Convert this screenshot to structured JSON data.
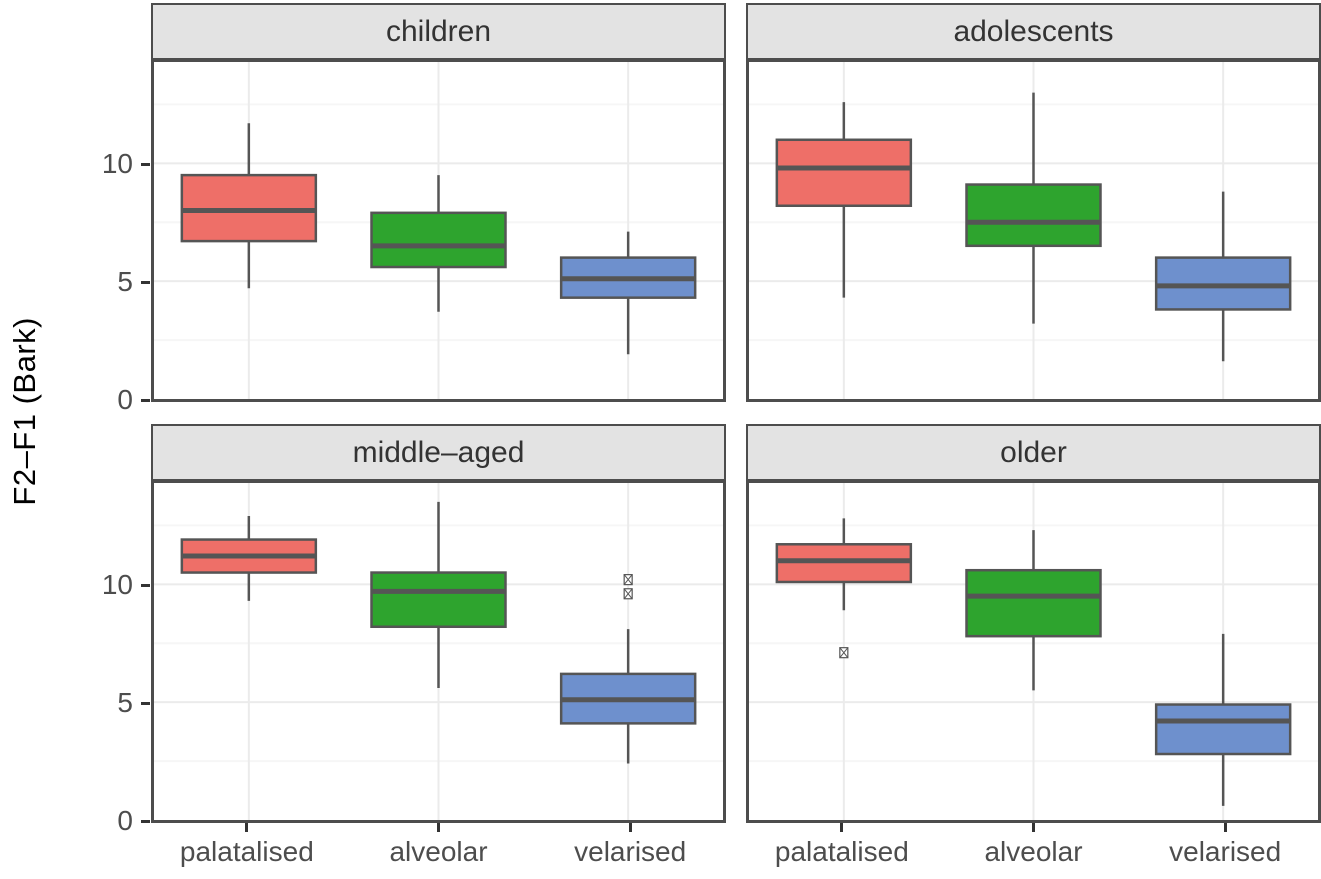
{
  "page": {
    "background": "#ffffff"
  },
  "y_axis": {
    "title": "F2–F1 (Bark)",
    "tick_labels": [
      "0",
      "5",
      "10"
    ]
  },
  "style": {
    "fill_palatalised": "#EE6F68",
    "fill_alveolar": "#2EA42E",
    "fill_velarised": "#6E90CD",
    "box_stroke": "#555555",
    "panel_border": "#4D4D4D",
    "strip_bg": "#E3E3E3",
    "strip_text": "#333333",
    "grid_major": "#EBEBEB",
    "grid_minor": "#F6F6F6",
    "axis_text": "#4D4D4D",
    "tick_mark": "#333333",
    "outlier_stroke": "#555555"
  },
  "chart_data": {
    "type": "boxplot",
    "title": "",
    "xlabel": "",
    "ylabel": "F2–F1 (Bark)",
    "grid": true,
    "legend": "none",
    "y_domain": [
      0,
      14.3
    ],
    "y_ticks": [
      0,
      5,
      10
    ],
    "y_minor_ticks": [
      2.5,
      7.5,
      12.5
    ],
    "categories": [
      "palatalised",
      "alveolar",
      "velarised"
    ],
    "facets": [
      {
        "label": "children",
        "boxes": [
          {
            "category": "palatalised",
            "whisker_low": 4.7,
            "q1": 6.7,
            "median": 8.0,
            "q3": 9.5,
            "whisker_high": 11.7,
            "outliers": []
          },
          {
            "category": "alveolar",
            "whisker_low": 3.7,
            "q1": 5.6,
            "median": 6.5,
            "q3": 7.9,
            "whisker_high": 9.5,
            "outliers": []
          },
          {
            "category": "velarised",
            "whisker_low": 1.9,
            "q1": 4.3,
            "median": 5.1,
            "q3": 6.0,
            "whisker_high": 7.1,
            "outliers": []
          }
        ]
      },
      {
        "label": "adolescents",
        "boxes": [
          {
            "category": "palatalised",
            "whisker_low": 4.3,
            "q1": 8.2,
            "median": 9.8,
            "q3": 11.0,
            "whisker_high": 12.6,
            "outliers": []
          },
          {
            "category": "alveolar",
            "whisker_low": 3.2,
            "q1": 6.5,
            "median": 7.5,
            "q3": 9.1,
            "whisker_high": 13.0,
            "outliers": []
          },
          {
            "category": "velarised",
            "whisker_low": 1.6,
            "q1": 3.8,
            "median": 4.8,
            "q3": 6.0,
            "whisker_high": 8.8,
            "outliers": []
          }
        ]
      },
      {
        "label": "middle–aged",
        "boxes": [
          {
            "category": "palatalised",
            "whisker_low": 9.3,
            "q1": 10.5,
            "median": 11.2,
            "q3": 11.9,
            "whisker_high": 12.9,
            "outliers": []
          },
          {
            "category": "alveolar",
            "whisker_low": 5.6,
            "q1": 8.2,
            "median": 9.7,
            "q3": 10.5,
            "whisker_high": 13.5,
            "outliers": []
          },
          {
            "category": "velarised",
            "whisker_low": 2.4,
            "q1": 4.1,
            "median": 5.1,
            "q3": 6.2,
            "whisker_high": 8.1,
            "outliers": [
              10.2,
              9.6
            ]
          }
        ]
      },
      {
        "label": "older",
        "boxes": [
          {
            "category": "palatalised",
            "whisker_low": 8.9,
            "q1": 10.1,
            "median": 11.0,
            "q3": 11.7,
            "whisker_high": 12.8,
            "outliers": [
              7.1
            ]
          },
          {
            "category": "alveolar",
            "whisker_low": 5.5,
            "q1": 7.8,
            "median": 9.5,
            "q3": 10.6,
            "whisker_high": 12.3,
            "outliers": []
          },
          {
            "category": "velarised",
            "whisker_low": 0.6,
            "q1": 2.8,
            "median": 4.2,
            "q3": 4.9,
            "whisker_high": 7.9,
            "outliers": []
          }
        ]
      }
    ]
  }
}
